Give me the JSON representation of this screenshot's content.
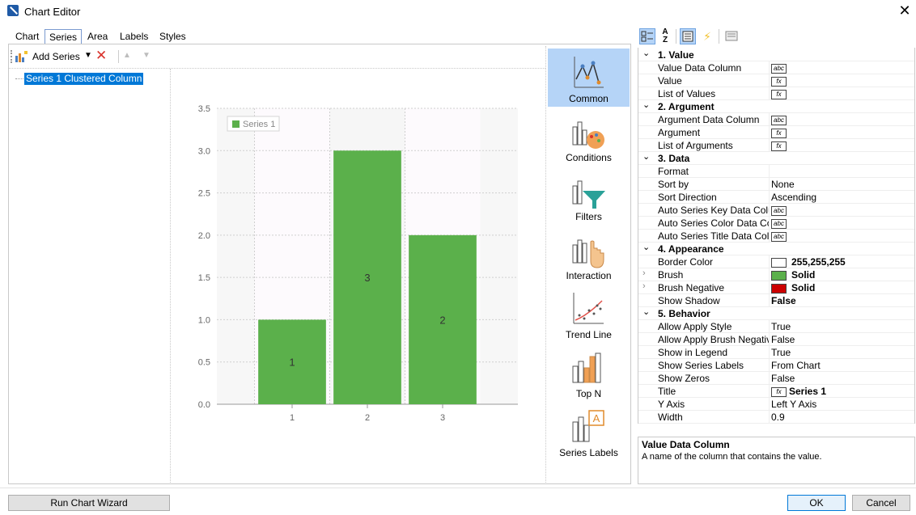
{
  "window": {
    "title": "Chart Editor",
    "close_icon": "close-icon"
  },
  "tabs": [
    {
      "label": "Chart"
    },
    {
      "label": "Series",
      "active": true
    },
    {
      "label": "Area"
    },
    {
      "label": "Labels"
    },
    {
      "label": "Styles"
    }
  ],
  "toolbar": {
    "add_series": "Add Series",
    "remove_icon": "delete-icon",
    "up_icon": "move-up-icon",
    "down_icon": "move-down-icon"
  },
  "series_list": [
    "Series 1 Clustered Column"
  ],
  "chart_data": {
    "type": "bar",
    "categories": [
      "1",
      "2",
      "3"
    ],
    "series": [
      {
        "name": "Series 1",
        "values": [
          1,
          3,
          2
        ],
        "color": "#5bb04b"
      }
    ],
    "data_labels": [
      "1",
      "3",
      "2"
    ],
    "yticks": [
      "0.0",
      "0.5",
      "1.0",
      "1.5",
      "2.0",
      "2.5",
      "3.0",
      "3.5"
    ],
    "ylim": [
      0,
      3.5
    ],
    "legend": "top-left",
    "grid": true
  },
  "categories_panel": [
    "Common",
    "Conditions",
    "Filters",
    "Interaction",
    "Trend Line",
    "Top N",
    "Series Labels"
  ],
  "selected_category": "Common",
  "prop_toolbar": {
    "categorized_icon": "categorized-icon",
    "alpha_icon": "sort-az-icon",
    "props_icon": "properties-icon",
    "events_icon": "events-icon",
    "pages_icon": "property-pages-icon"
  },
  "property_grid": {
    "sections": [
      {
        "title": "1. Value",
        "rows": [
          {
            "name": "Value Data Column",
            "icon": "abc"
          },
          {
            "name": "Value",
            "icon": "fx"
          },
          {
            "name": "List of Values",
            "icon": "fx"
          }
        ]
      },
      {
        "title": "2. Argument",
        "rows": [
          {
            "name": "Argument Data Column",
            "icon": "abc"
          },
          {
            "name": "Argument",
            "icon": "fx"
          },
          {
            "name": "List of Arguments",
            "icon": "fx"
          }
        ]
      },
      {
        "title": "3. Data",
        "rows": [
          {
            "name": "Format",
            "value": ""
          },
          {
            "name": "Sort by",
            "value": "None"
          },
          {
            "name": "Sort Direction",
            "value": "Ascending"
          },
          {
            "name": "Auto Series Key Data Column",
            "icon": "abc"
          },
          {
            "name": "Auto Series Color Data Column",
            "icon": "abc"
          },
          {
            "name": "Auto Series Title Data Column",
            "icon": "abc"
          }
        ]
      },
      {
        "title": "4. Appearance",
        "rows": [
          {
            "name": "Border Color",
            "swatch": "#ffffff",
            "value": "255,255,255",
            "bold": true
          },
          {
            "name": "Brush",
            "swatch": "#5bb04b",
            "value": "Solid",
            "bold": true,
            "expandable": true
          },
          {
            "name": "Brush Negative",
            "swatch": "#cc0000",
            "value": "Solid",
            "bold": true,
            "expandable": true
          },
          {
            "name": "Show Shadow",
            "value": "False",
            "bold": true
          }
        ]
      },
      {
        "title": "5. Behavior",
        "rows": [
          {
            "name": "Allow Apply Style",
            "value": "True"
          },
          {
            "name": "Allow Apply Brush Negative",
            "value": "False"
          },
          {
            "name": "Show in Legend",
            "value": "True"
          },
          {
            "name": "Show Series Labels",
            "value": "From Chart"
          },
          {
            "name": "Show Zeros",
            "value": "False"
          },
          {
            "name": "Title",
            "icon": "fx",
            "value": "Series 1",
            "bold": true
          },
          {
            "name": "Y Axis",
            "value": "Left Y Axis"
          },
          {
            "name": "Width",
            "value": "0.9"
          }
        ]
      }
    ]
  },
  "description": {
    "title": "Value Data Column",
    "text": "A name of the column that contains the value."
  },
  "buttons": {
    "wizard": "Run Chart Wizard",
    "ok": "OK",
    "cancel": "Cancel"
  }
}
